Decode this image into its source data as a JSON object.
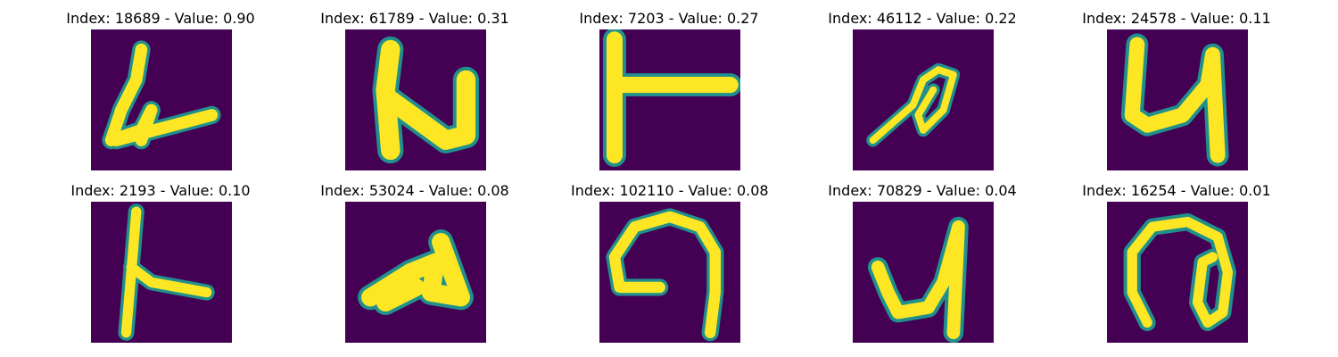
{
  "colors": {
    "background": "#440154",
    "edge": "#21908c",
    "fill": "#fde725",
    "mid": "#5ec962"
  },
  "panels": [
    {
      "title": "Index: 18689 - Value: 0.90",
      "glyph": "four-like"
    },
    {
      "title": "Index: 61789 - Value: 0.31",
      "glyph": "n-like"
    },
    {
      "title": "Index: 7203 - Value: 0.27",
      "glyph": "t-like"
    },
    {
      "title": "Index: 46112 - Value: 0.22",
      "glyph": "loop-like"
    },
    {
      "title": "Index: 24578 - Value: 0.11",
      "glyph": "u-like"
    },
    {
      "title": "Index: 2193 - Value: 0.10",
      "glyph": "k-like"
    },
    {
      "title": "Index: 53024 - Value: 0.08",
      "glyph": "a-like"
    },
    {
      "title": "Index: 102110 - Value: 0.08",
      "glyph": "hook-like"
    },
    {
      "title": "Index: 70829 - Value: 0.04",
      "glyph": "u-hook-like"
    },
    {
      "title": "Index: 16254 - Value: 0.01",
      "glyph": "at-like"
    }
  ]
}
